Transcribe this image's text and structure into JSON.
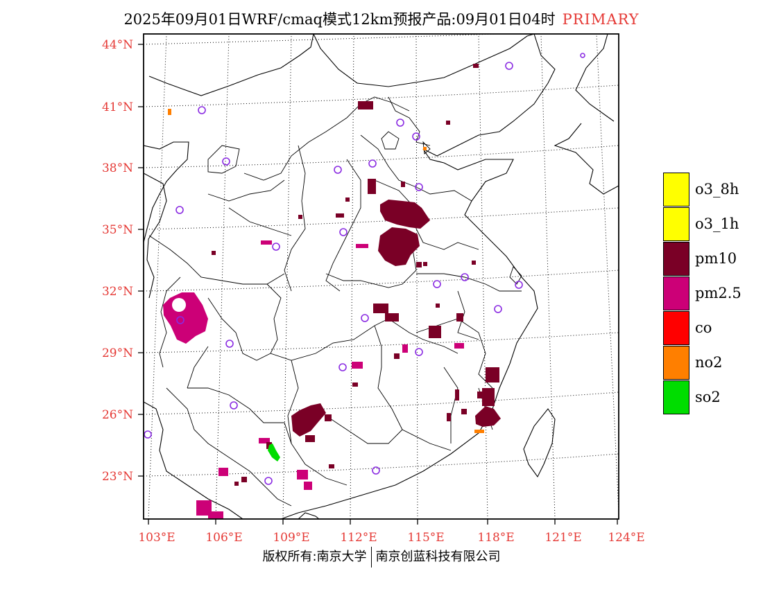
{
  "title": {
    "main": "2025年09月01日WRF/cmaq模式12km预报产品:09月01日04时",
    "tag": "PRIMARY"
  },
  "lat_labels": [
    "44°N",
    "41°N",
    "38°N",
    "35°N",
    "32°N",
    "29°N",
    "26°N",
    "23°N"
  ],
  "lon_labels": [
    "103°E",
    "106°E",
    "109°E",
    "112°E",
    "115°E",
    "118°E",
    "121°E",
    "124°E"
  ],
  "legend": [
    {
      "label": "o3_8h",
      "color": "#ffff00"
    },
    {
      "label": "o3_1h",
      "color": "#ffff00"
    },
    {
      "label": "pm10",
      "color": "#7a0026"
    },
    {
      "label": "pm2.5",
      "color": "#cc0077"
    },
    {
      "label": "co",
      "color": "#ff0000"
    },
    {
      "label": "no2",
      "color": "#ff7f00"
    },
    {
      "label": "so2",
      "color": "#00dd00"
    }
  ],
  "footer": {
    "left": "版权所有:南京大学",
    "right": "南京创蓝科技有限公司"
  },
  "colors": {
    "pm10": "#7a0026",
    "pm25": "#cc0077",
    "no2": "#ff7f00",
    "so2": "#00dd00",
    "station": "#8a2be2",
    "axis_label": "#e53935"
  }
}
